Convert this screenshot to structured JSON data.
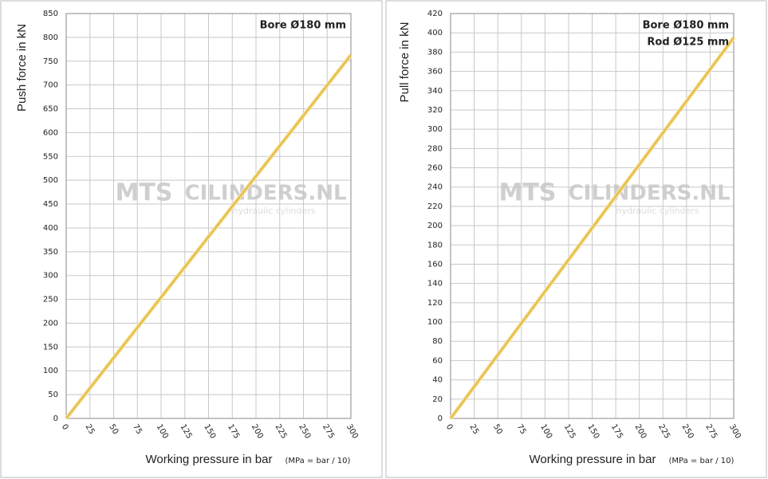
{
  "chart_data": [
    {
      "type": "line",
      "ylabel": "Push force  in kN",
      "xlabel": "Working pressure in bar",
      "xnote": "(MPa = bar / 10)",
      "annotations": [
        "Bore Ø180 mm"
      ],
      "watermark": [
        "MTS",
        "CILINDERS.NL",
        "hydraulic cylinders"
      ],
      "x": [
        0,
        300
      ],
      "values": [
        0,
        763
      ],
      "color": "#e6c04a",
      "xlim": [
        0,
        300
      ],
      "xticks": [
        0,
        25,
        50,
        75,
        100,
        125,
        150,
        175,
        200,
        225,
        250,
        275,
        300
      ],
      "ylim": [
        0,
        850
      ],
      "yticks": [
        0,
        50,
        100,
        150,
        200,
        250,
        300,
        350,
        400,
        450,
        500,
        550,
        600,
        650,
        700,
        750,
        800,
        850
      ],
      "grid": true
    },
    {
      "type": "line",
      "ylabel": "Pull force  in kN",
      "xlabel": "Working pressure in bar",
      "xnote": "(MPa = bar / 10)",
      "annotations": [
        "Bore Ø180 mm",
        "Rod Ø125 mm"
      ],
      "watermark": [
        "MTS",
        "CILINDERS.NL",
        "hydraulic cylinders"
      ],
      "x": [
        0,
        300
      ],
      "values": [
        0,
        395
      ],
      "color": "#e6c04a",
      "xlim": [
        0,
        300
      ],
      "xticks": [
        0,
        25,
        50,
        75,
        100,
        125,
        150,
        175,
        200,
        225,
        250,
        275,
        300
      ],
      "ylim": [
        0,
        420
      ],
      "yticks": [
        0,
        20,
        40,
        60,
        80,
        100,
        120,
        140,
        160,
        180,
        200,
        220,
        240,
        260,
        280,
        300,
        320,
        340,
        360,
        380,
        400,
        420
      ],
      "grid": true
    }
  ]
}
